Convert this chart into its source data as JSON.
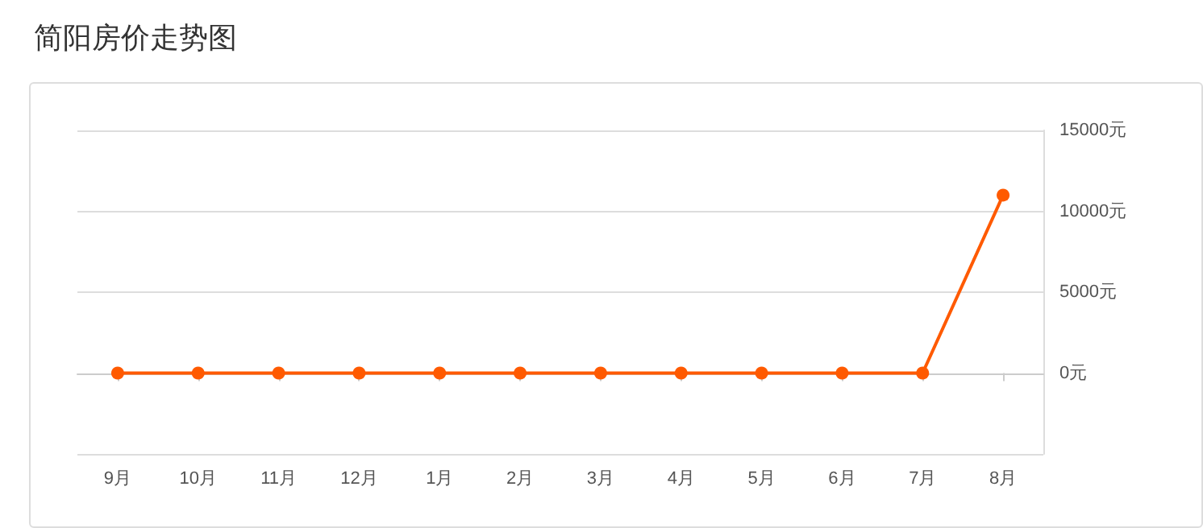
{
  "chart_data": {
    "type": "line",
    "title": "简阳房价走势图",
    "categories": [
      "9月",
      "10月",
      "11月",
      "12月",
      "1月",
      "2月",
      "3月",
      "4月",
      "5月",
      "6月",
      "7月",
      "8月"
    ],
    "series": [
      {
        "color": "#ff5a00",
        "values": [
          0,
          0,
          0,
          0,
          0,
          0,
          0,
          0,
          0,
          0,
          0,
          11000
        ]
      }
    ],
    "ylim": [
      -5000,
      15000
    ],
    "yticks": [
      {
        "value": -5000,
        "label": null
      },
      {
        "value": 0,
        "label": "0元"
      },
      {
        "value": 5000,
        "label": "5000元"
      },
      {
        "value": 10000,
        "label": "10000元"
      },
      {
        "value": 15000,
        "label": "15000元"
      }
    ],
    "grid": "y",
    "marker": "circle",
    "line_style": "solid"
  }
}
